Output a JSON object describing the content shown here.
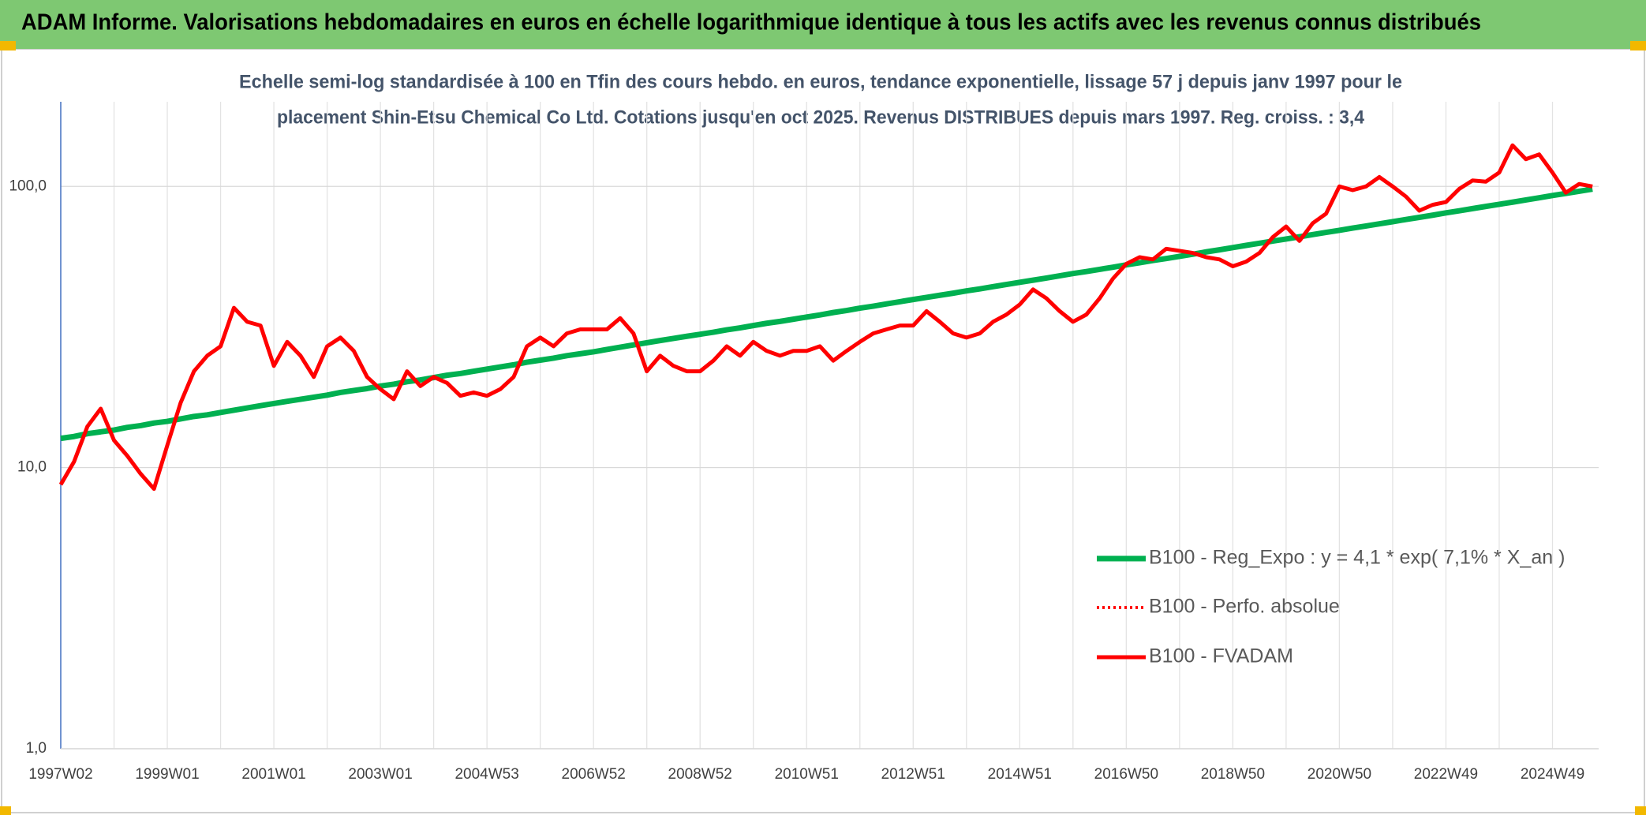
{
  "chart_data": {
    "type": "line",
    "title": "ADAM Informe. Valorisations hebdomadaires en euros en échelle logarithmique identique à tous les actifs avec les revenus connus distribués",
    "subtitle": [
      "Echelle semi-log standardisée à 100 en Tfin des cours hebdo. en euros, tendance exponentielle, lissage 57 j depuis janv 1997 pour le",
      "placement Shin-Etsu Chemical Co Ltd. Cotations jusqu'en oct 2025. Revenus DISTRIBUES depuis mars 1997. Reg. croiss. : 3,4"
    ],
    "categories": [
      "1997W02",
      null,
      null,
      null,
      null,
      null,
      null,
      null,
      "1999W01",
      null,
      null,
      null,
      null,
      null,
      null,
      null,
      "2001W01",
      null,
      null,
      null,
      null,
      null,
      null,
      null,
      "2003W01",
      null,
      null,
      null,
      null,
      null,
      null,
      null,
      "2004W53",
      null,
      null,
      null,
      null,
      null,
      null,
      null,
      "2006W52",
      null,
      null,
      null,
      null,
      null,
      null,
      null,
      "2008W52",
      null,
      null,
      null,
      null,
      null,
      null,
      null,
      "2010W51",
      null,
      null,
      null,
      null,
      null,
      null,
      null,
      "2012W51",
      null,
      null,
      null,
      null,
      null,
      null,
      null,
      "2014W51",
      null,
      null,
      null,
      null,
      null,
      null,
      null,
      "2016W50",
      null,
      null,
      null,
      null,
      null,
      null,
      null,
      "2018W50",
      null,
      null,
      null,
      null,
      null,
      null,
      null,
      "2020W50",
      null,
      null,
      null,
      null,
      null,
      null,
      null,
      "2022W49",
      null,
      null,
      null,
      null,
      null,
      null,
      null,
      "2024W49",
      null,
      null,
      null
    ],
    "series": [
      {
        "name": "B100 - Reg_Expo : y = 4,1 * exp( 7,1% *  X_an )",
        "color": "#00b050",
        "style": "solid",
        "values": [
          12.7,
          12.9,
          13.2,
          13.4,
          13.6,
          13.9,
          14.1,
          14.4,
          14.6,
          14.9,
          15.2,
          15.4,
          15.7,
          16.0,
          16.3,
          16.6,
          16.9,
          17.2,
          17.5,
          17.8,
          18.1,
          18.5,
          18.8,
          19.1,
          19.5,
          19.8,
          20.2,
          20.5,
          20.9,
          21.3,
          21.6,
          22.0,
          22.4,
          22.8,
          23.2,
          23.7,
          24.1,
          24.5,
          25.0,
          25.4,
          25.8,
          26.3,
          26.8,
          27.3,
          27.8,
          28.3,
          28.8,
          29.3,
          29.8,
          30.3,
          30.9,
          31.4,
          32.0,
          32.6,
          33.1,
          33.7,
          34.3,
          34.9,
          35.6,
          36.2,
          36.9,
          37.5,
          38.2,
          38.9,
          39.6,
          40.3,
          41.0,
          41.7,
          42.5,
          43.2,
          44.0,
          44.8,
          45.6,
          46.4,
          47.2,
          48.1,
          49.0,
          49.8,
          50.7,
          51.6,
          52.6,
          53.5,
          54.5,
          55.4,
          56.4,
          57.4,
          58.5,
          59.5,
          60.6,
          61.7,
          62.8,
          63.9,
          65.0,
          66.2,
          67.4,
          68.6,
          69.8,
          71.1,
          72.3,
          73.6,
          74.9,
          76.3,
          77.6,
          79.0,
          80.5,
          81.9,
          83.4,
          84.9,
          86.4,
          87.9,
          89.5,
          91.1,
          92.8,
          94.4,
          96.1,
          97.8
        ]
      },
      {
        "name": "B100 - Perfo. absolue",
        "color": "#ff0000",
        "style": "dotted",
        "values": [
          8.7,
          10.5,
          14,
          16.2,
          12.5,
          11,
          9.5,
          8.4,
          12,
          17,
          22,
          25,
          27,
          37,
          33,
          32,
          23,
          28,
          25,
          21,
          27,
          29,
          26,
          21,
          19,
          17.5,
          22,
          19.5,
          21,
          20,
          18,
          18.5,
          18,
          19,
          21,
          27,
          29,
          27,
          30,
          31,
          31,
          31,
          34,
          30,
          22,
          25,
          23,
          22,
          22,
          24,
          27,
          25,
          28,
          26,
          25,
          26,
          26,
          27,
          24,
          26,
          28,
          30,
          31,
          32,
          32,
          36,
          33,
          30,
          29,
          30,
          33,
          35,
          38,
          43,
          40,
          36,
          33,
          35,
          40,
          47,
          53,
          56,
          55,
          60,
          59,
          58,
          56,
          55,
          52,
          54,
          58,
          66,
          72,
          64,
          74,
          80,
          100,
          97,
          100,
          108,
          100,
          92,
          82,
          86,
          88,
          98,
          105,
          104,
          112,
          140,
          125,
          130,
          112,
          95,
          102,
          100
        ]
      },
      {
        "name": "B100 - FVADAM",
        "color": "#ff0000",
        "style": "solid",
        "values": [
          8.7,
          10.5,
          14,
          16.2,
          12.5,
          11,
          9.5,
          8.4,
          12,
          17,
          22,
          25,
          27,
          37,
          33,
          32,
          23,
          28,
          25,
          21,
          27,
          29,
          26,
          21,
          19,
          17.5,
          22,
          19.5,
          21,
          20,
          18,
          18.5,
          18,
          19,
          21,
          27,
          29,
          27,
          30,
          31,
          31,
          31,
          34,
          30,
          22,
          25,
          23,
          22,
          22,
          24,
          27,
          25,
          28,
          26,
          25,
          26,
          26,
          27,
          24,
          26,
          28,
          30,
          31,
          32,
          32,
          36,
          33,
          30,
          29,
          30,
          33,
          35,
          38,
          43,
          40,
          36,
          33,
          35,
          40,
          47,
          53,
          56,
          55,
          60,
          59,
          58,
          56,
          55,
          52,
          54,
          58,
          66,
          72,
          64,
          74,
          80,
          100,
          97,
          100,
          108,
          100,
          92,
          82,
          86,
          88,
          98,
          105,
          104,
          112,
          140,
          125,
          130,
          112,
          95,
          102,
          100
        ]
      }
    ],
    "ylim": [
      1,
      200
    ],
    "log_scale": true,
    "yticks": [
      {
        "value": 1,
        "label": "1,0"
      },
      {
        "value": 10,
        "label": "10,0"
      },
      {
        "value": 100,
        "label": "100,0"
      }
    ],
    "grid": true,
    "legend": "right"
  }
}
